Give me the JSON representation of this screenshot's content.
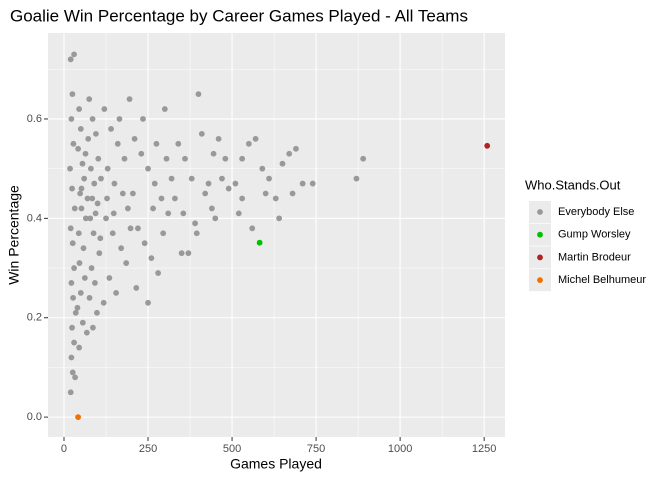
{
  "chart_data": {
    "type": "scatter",
    "title": "Goalie Win Percentage by Career Games Played - All Teams",
    "x_label": "Games Played",
    "y_label": "Win Percentage",
    "legend_title": "Who.Stands.Out",
    "legend_position": "right",
    "grid": true,
    "xlim": [
      -47.6,
      1312
    ],
    "ylim": [
      -0.04,
      0.773
    ],
    "xticks": [
      0,
      250,
      500,
      750,
      1000,
      1250
    ],
    "yticks": [
      {
        "value": 0,
        "label": "0.0"
      },
      0.2,
      0.4,
      0.6
    ],
    "series": [
      {
        "name": "Everybody Else",
        "color": "#999999",
        "x": [
          20,
          30,
          25,
          22,
          28,
          18,
          24,
          32,
          20,
          26,
          30,
          22,
          27,
          35,
          24,
          30,
          22,
          26,
          20,
          33,
          45,
          50,
          42,
          55,
          60,
          48,
          52,
          65,
          44,
          58,
          46,
          62,
          50,
          40,
          56,
          68,
          45,
          52,
          70,
          64,
          75,
          85,
          95,
          80,
          90,
          100,
          78,
          88,
          105,
          82,
          92,
          76,
          98,
          86,
          108,
          72,
          102,
          110,
          94,
          84,
          120,
          140,
          160,
          130,
          150,
          175,
          190,
          125,
          145,
          170,
          185,
          135,
          155,
          118,
          165,
          195,
          180,
          128,
          148,
          198,
          210,
          230,
          250,
          270,
          290,
          310,
          220,
          240,
          260,
          280,
          300,
          215,
          250,
          235,
          275,
          305,
          320,
          205,
          265,
          295,
          340,
          360,
          380,
          400,
          420,
          440,
          460,
          480,
          350,
          370,
          390,
          410,
          430,
          450,
          470,
          490,
          330,
          355,
          395,
          445,
          510,
          530,
          550,
          570,
          560,
          520,
          590,
          610,
          630,
          650,
          670,
          690,
          710,
          740,
          870,
          890,
          640,
          680,
          600,
          530
        ],
        "values": [
          0.72,
          0.73,
          0.65,
          0.6,
          0.55,
          0.5,
          0.46,
          0.42,
          0.38,
          0.35,
          0.3,
          0.27,
          0.24,
          0.21,
          0.18,
          0.15,
          0.12,
          0.09,
          0.05,
          0.08,
          0.62,
          0.58,
          0.54,
          0.51,
          0.48,
          0.45,
          0.42,
          0.4,
          0.37,
          0.34,
          0.31,
          0.28,
          0.25,
          0.22,
          0.19,
          0.17,
          0.14,
          0.46,
          0.44,
          0.53,
          0.64,
          0.6,
          0.57,
          0.5,
          0.47,
          0.43,
          0.4,
          0.37,
          0.33,
          0.3,
          0.27,
          0.24,
          0.21,
          0.18,
          0.36,
          0.56,
          0.52,
          0.48,
          0.41,
          0.44,
          0.62,
          0.58,
          0.55,
          0.5,
          0.47,
          0.45,
          0.42,
          0.4,
          0.37,
          0.34,
          0.31,
          0.28,
          0.25,
          0.23,
          0.6,
          0.64,
          0.52,
          0.44,
          0.41,
          0.38,
          0.56,
          0.53,
          0.5,
          0.47,
          0.44,
          0.41,
          0.38,
          0.35,
          0.32,
          0.29,
          0.62,
          0.26,
          0.23,
          0.6,
          0.55,
          0.52,
          0.48,
          0.45,
          0.42,
          0.37,
          0.55,
          0.52,
          0.48,
          0.65,
          0.45,
          0.42,
          0.56,
          0.52,
          0.33,
          0.33,
          0.39,
          0.57,
          0.47,
          0.4,
          0.48,
          0.46,
          0.44,
          0.41,
          0.37,
          0.53,
          0.47,
          0.44,
          0.55,
          0.56,
          0.38,
          0.41,
          0.5,
          0.48,
          0.44,
          0.51,
          0.53,
          0.54,
          0.47,
          0.47,
          0.48,
          0.52,
          0.4,
          0.45,
          0.45,
          0.52
        ]
      },
      {
        "name": "Gump Worsley",
        "color": "#00C000",
        "x": [
          582
        ],
        "values": [
          0.351
        ]
      },
      {
        "name": "Martin Brodeur",
        "color": "#B22222",
        "x": [
          1259
        ],
        "values": [
          0.546
        ]
      },
      {
        "name": "Michel Belhumeur",
        "color": "#F07000",
        "x": [
          42
        ],
        "values": [
          0.0
        ]
      }
    ]
  }
}
